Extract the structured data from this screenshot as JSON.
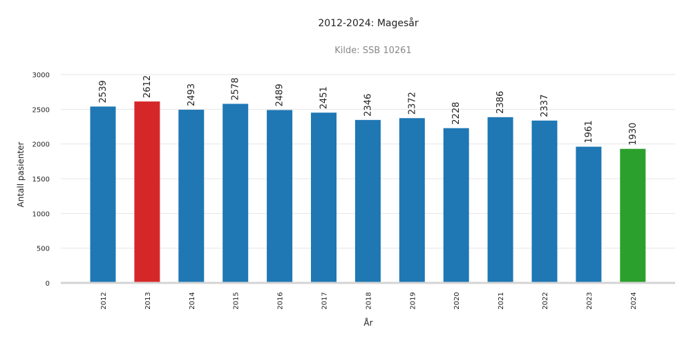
{
  "chart_data": {
    "type": "bar",
    "title": "2012-2024: Magesår",
    "subtitle": "Kilde: SSB 10261",
    "xlabel": "År",
    "ylabel": "Antall pasienter",
    "ylim": [
      0,
      3000
    ],
    "yticks": [
      0,
      500,
      1000,
      1500,
      2000,
      2500,
      3000
    ],
    "grid": true,
    "categories": [
      "2012",
      "2013",
      "2014",
      "2015",
      "2016",
      "2017",
      "2018",
      "2019",
      "2020",
      "2021",
      "2022",
      "2023",
      "2024"
    ],
    "values": [
      2539,
      2612,
      2493,
      2578,
      2489,
      2451,
      2346,
      2372,
      2228,
      2386,
      2337,
      1961,
      1930
    ],
    "colors": [
      "#1f77b4",
      "#d62728",
      "#1f77b4",
      "#1f77b4",
      "#1f77b4",
      "#1f77b4",
      "#1f77b4",
      "#1f77b4",
      "#1f77b4",
      "#1f77b4",
      "#1f77b4",
      "#1f77b4",
      "#2ca02c"
    ]
  }
}
